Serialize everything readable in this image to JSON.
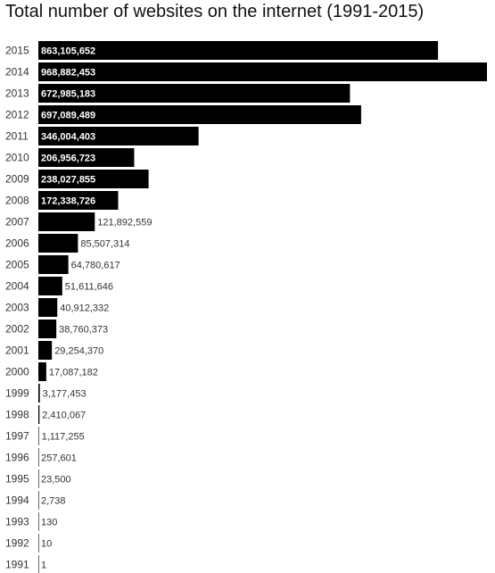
{
  "chart_data": {
    "type": "bar",
    "orientation": "horizontal",
    "title": "Total number of websites on the internet (1991-2015)",
    "xlabel": "",
    "ylabel": "",
    "grid": false,
    "legend": "none",
    "bar_color": "#000000",
    "categories": [
      "2015",
      "2014",
      "2013",
      "2012",
      "2011",
      "2010",
      "2009",
      "2008",
      "2007",
      "2006",
      "2005",
      "2004",
      "2003",
      "2002",
      "2001",
      "2000",
      "1999",
      "1998",
      "1997",
      "1996",
      "1995",
      "1994",
      "1993",
      "1992",
      "1991"
    ],
    "values": [
      863105652,
      968882453,
      672985183,
      697089489,
      346004403,
      206956723,
      238027855,
      172338726,
      121892559,
      85507314,
      64780617,
      51611646,
      40912332,
      38760373,
      29254370,
      17087182,
      3177453,
      2410067,
      1117255,
      257601,
      23500,
      2738,
      130,
      10,
      1
    ],
    "value_labels": [
      "863,105,652",
      "968,882,453",
      "672,985,183",
      "697,089,489",
      "346,004,403",
      "206,956,723",
      "238,027,855",
      "172,338,726",
      "121,892,559",
      "85,507,314",
      "64,780,617",
      "51,611,646",
      "40,912,332",
      "38,760,373",
      "29,254,370",
      "17,087,182",
      "3,177,453",
      "2,410,067",
      "1,117,255",
      "257,601",
      "23,500",
      "2,738",
      "130",
      "10",
      "1"
    ],
    "xlim": [
      0,
      968882453
    ]
  }
}
